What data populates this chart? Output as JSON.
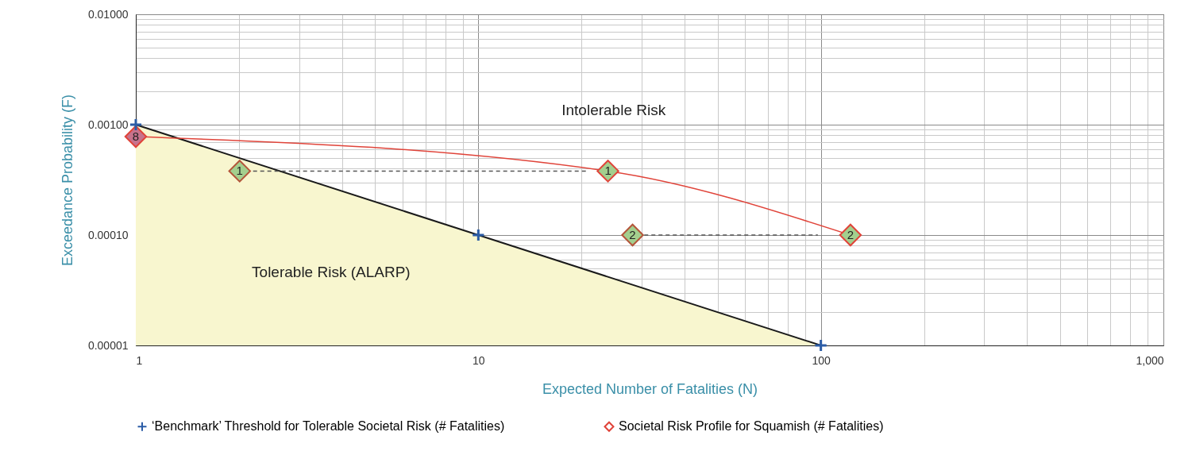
{
  "chart_data": {
    "type": "line",
    "xlabel": "Expected Number of Fatalities (N)",
    "ylabel": "Exceedance Probability (F)",
    "log": "xy",
    "grid": true,
    "legend": "bottom",
    "xlim": [
      1,
      1000
    ],
    "ylim": [
      1e-05,
      0.01
    ],
    "xticks": [
      1,
      {
        "value": 2,
        "label": null
      },
      {
        "value": 3,
        "label": null
      },
      {
        "value": 4,
        "label": null
      },
      {
        "value": 5,
        "label": null
      },
      {
        "value": 6,
        "label": null
      },
      {
        "value": 7,
        "label": null
      },
      {
        "value": 8,
        "label": null
      },
      {
        "value": 9,
        "label": null
      },
      10,
      {
        "value": 20,
        "label": null
      },
      {
        "value": 30,
        "label": null
      },
      {
        "value": 40,
        "label": null
      },
      {
        "value": 50,
        "label": null
      },
      {
        "value": 60,
        "label": null
      },
      {
        "value": 70,
        "label": null
      },
      {
        "value": 80,
        "label": null
      },
      {
        "value": 90,
        "label": null
      },
      100,
      {
        "value": 200,
        "label": null
      },
      {
        "value": 300,
        "label": null
      },
      {
        "value": 400,
        "label": null
      },
      {
        "value": 500,
        "label": null
      },
      {
        "value": 600,
        "label": null
      },
      {
        "value": 700,
        "label": null
      },
      {
        "value": 800,
        "label": null
      },
      {
        "value": 900,
        "label": null
      },
      {
        "value": 1000,
        "label": "1,000"
      }
    ],
    "yticks": [
      {
        "value": 1e-05,
        "label": "0.00001"
      },
      {
        "value": 2e-05,
        "label": null
      },
      {
        "value": 3e-05,
        "label": null
      },
      {
        "value": 4e-05,
        "label": null
      },
      {
        "value": 5e-05,
        "label": null
      },
      {
        "value": 6e-05,
        "label": null
      },
      {
        "value": 7e-05,
        "label": null
      },
      {
        "value": 8e-05,
        "label": null
      },
      {
        "value": 9e-05,
        "label": null
      },
      {
        "value": 0.0001,
        "label": "0.00010"
      },
      {
        "value": 0.0002,
        "label": null
      },
      {
        "value": 0.0003,
        "label": null
      },
      {
        "value": 0.0004,
        "label": null
      },
      {
        "value": 0.0005,
        "label": null
      },
      {
        "value": 0.0006,
        "label": null
      },
      {
        "value": 0.0007,
        "label": null
      },
      {
        "value": 0.0008,
        "label": null
      },
      {
        "value": 0.0009,
        "label": null
      },
      {
        "value": 0.001,
        "label": "0.00100"
      },
      {
        "value": 0.002,
        "label": null
      },
      {
        "value": 0.003,
        "label": null
      },
      {
        "value": 0.004,
        "label": null
      },
      {
        "value": 0.005,
        "label": null
      },
      {
        "value": 0.006,
        "label": null
      },
      {
        "value": 0.007,
        "label": null
      },
      {
        "value": 0.008,
        "label": null
      },
      {
        "value": 0.009,
        "label": null
      },
      {
        "value": 0.01,
        "label": "0.01000"
      }
    ],
    "series": [
      {
        "type": "area",
        "color": "#f8f6cf",
        "x": [
          1,
          10,
          100
        ],
        "values": [
          0.001,
          0.0001,
          1e-05
        ]
      },
      {
        "type": "scatter",
        "name": "‘Benchmark’ Threshold for Tolerable Societal Risk (# Fatalities)",
        "color": "#2b5ca6",
        "marker": "cross",
        "x": [
          1,
          10,
          100
        ],
        "values": [
          0.001,
          0.0001,
          1e-05
        ]
      },
      {
        "type": "line",
        "name": "Societal Risk Profile for Squamish (# Fatalities)",
        "color": "#e0443a",
        "marker": "diamond",
        "x": [
          1,
          23.9,
          122
        ],
        "values": [
          0.00078,
          0.00038,
          0.0001
        ],
        "colors": [
          "#c7728c",
          "#a3cf8e",
          "#a3cf8e"
        ]
      },
      {
        "type": "scatter",
        "color": "#a3cf8e",
        "marker": "diamond",
        "x": [
          2.01,
          28.2
        ],
        "values": [
          0.00038,
          0.0001
        ]
      },
      {
        "type": "line",
        "color": "#555555",
        "line_style": "dashed",
        "marker": "none",
        "x": [
          20.6,
          2.2
        ],
        "values": [
          0.00038,
          0.00038
        ]
      },
      {
        "type": "line",
        "color": "#555555",
        "line_style": "dashed",
        "marker": "none",
        "x": [
          98,
          30.5
        ],
        "values": [
          0.0001,
          0.0001
        ]
      }
    ],
    "annotations": [
      "Intolerable Risk",
      "Tolerable Risk (ALARP)",
      {
        "text": "8",
        "x": 1,
        "y": 0.00078
      },
      {
        "text": "1",
        "x": 23.9,
        "y": 0.00038
      },
      {
        "text": "2",
        "x": 122,
        "y": 0.0001
      },
      {
        "text": "1",
        "x": 2.01,
        "y": 0.00038
      },
      {
        "text": "2",
        "x": 28.2,
        "y": 0.0001
      }
    ]
  }
}
